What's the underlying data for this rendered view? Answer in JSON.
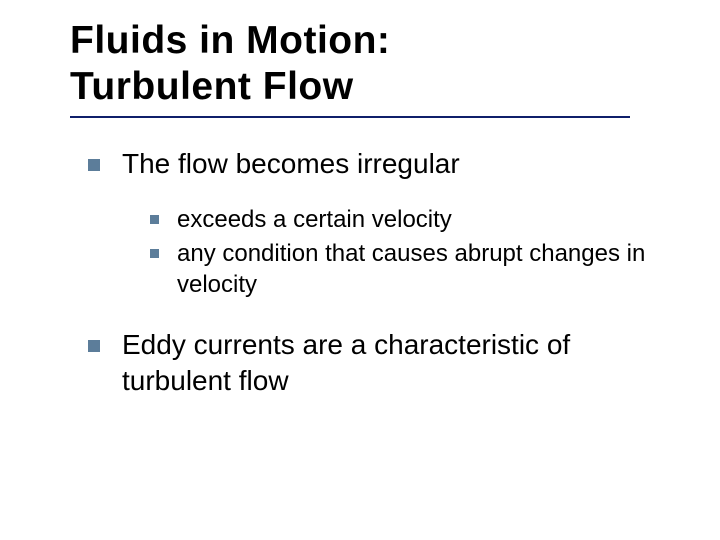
{
  "title_fontsize": 39,
  "lvl1_fontsize": 28,
  "lvl2_fontsize": 24,
  "text_color": "#000000",
  "bullet_color": "#5c7d9a",
  "underline_color": "#0f1f6a",
  "background_color": "#ffffff",
  "title_line1": "Fluids in Motion:",
  "title_line2": "Turbulent Flow",
  "bullets": {
    "b1": "The flow becomes irregular",
    "b1_1": "exceeds a certain velocity",
    "b1_2": "any condition that causes abrupt changes in velocity",
    "b2": "Eddy currents are a characteristic of turbulent flow"
  }
}
